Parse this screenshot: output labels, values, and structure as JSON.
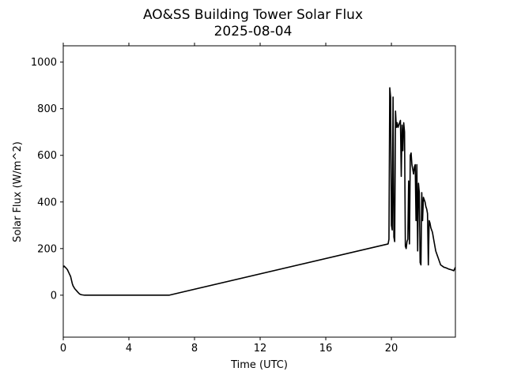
{
  "chart_data": {
    "type": "line",
    "title": "AO&SS Building Tower Solar Flux",
    "subtitle": "2025-08-04",
    "xlabel": "Time (UTC)",
    "ylabel": "Solar Flux (W/m^2)",
    "xlim": [
      0,
      23.9
    ],
    "ylim": [
      -180,
      1070
    ],
    "xticks": [
      0,
      4,
      8,
      12,
      16,
      20
    ],
    "yticks": [
      0,
      200,
      400,
      600,
      800,
      1000
    ],
    "grid": false,
    "line_color": "#000000",
    "series": [
      {
        "x": [
          0,
          0.05,
          0.15,
          0.25,
          0.35,
          0.45,
          0.55,
          0.6,
          0.7,
          0.8,
          0.9,
          1.0,
          1.1,
          1.3,
          1.6,
          2.0,
          6.45,
          19.8,
          19.85,
          19.9,
          19.95,
          20.0,
          20.05,
          20.1,
          20.15,
          20.2,
          20.25,
          20.3,
          20.35,
          20.4,
          20.45,
          20.5,
          20.55,
          20.6,
          20.65,
          20.7,
          20.75,
          20.8,
          20.85,
          20.9,
          20.95,
          21.0,
          21.05,
          21.1,
          21.15,
          21.2,
          21.25,
          21.3,
          21.35,
          21.4,
          21.45,
          21.5,
          21.55,
          21.6,
          21.65,
          21.7,
          21.75,
          21.8,
          21.85,
          21.9,
          21.95,
          22.0,
          22.05,
          22.1,
          22.15,
          22.2,
          22.25,
          22.3,
          22.35,
          22.4,
          22.45,
          22.5,
          22.55,
          22.6,
          22.65,
          22.7,
          22.75,
          22.8,
          22.85,
          22.9,
          22.95,
          23.0,
          23.1,
          23.2,
          23.3,
          23.4,
          23.5,
          23.6,
          23.7,
          23.8,
          23.9
        ],
        "y": [
          120,
          125,
          118,
          110,
          95,
          80,
          50,
          40,
          28,
          20,
          12,
          5,
          2,
          0,
          0,
          0,
          0,
          220,
          240,
          890,
          850,
          300,
          280,
          850,
          250,
          230,
          790,
          720,
          740,
          720,
          730,
          740,
          750,
          510,
          730,
          620,
          740,
          700,
          210,
          200,
          230,
          240,
          490,
          220,
          600,
          610,
          560,
          540,
          520,
          550,
          560,
          320,
          560,
          190,
          480,
          440,
          140,
          130,
          440,
          320,
          420,
          410,
          400,
          380,
          370,
          350,
          130,
          320,
          310,
          290,
          280,
          270,
          250,
          230,
          210,
          190,
          180,
          170,
          160,
          150,
          140,
          130,
          125,
          120,
          118,
          115,
          112,
          110,
          108,
          105,
          120
        ]
      }
    ]
  }
}
